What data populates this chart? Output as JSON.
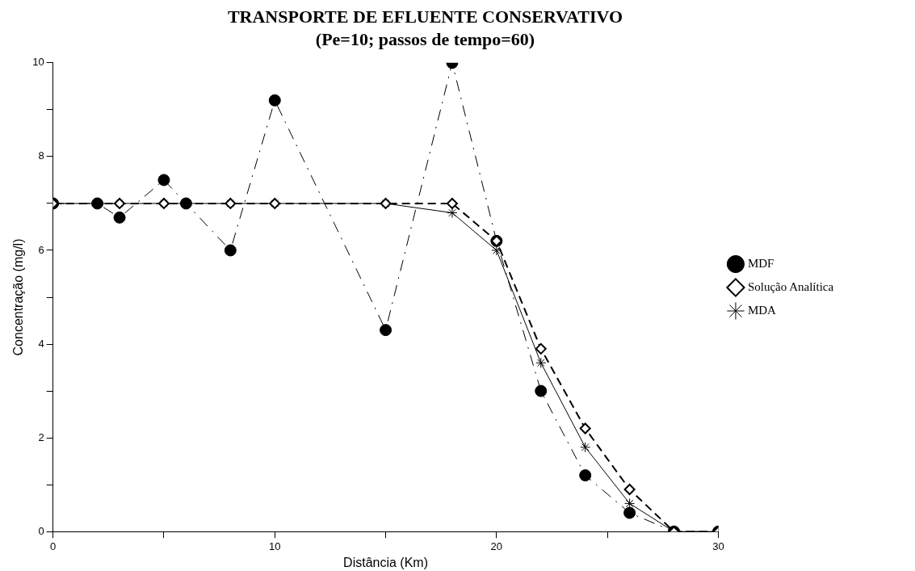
{
  "chart_data": {
    "type": "line",
    "title": "TRANSPORTE DE EFLUENTE CONSERVATIVO",
    "subtitle": "(Pe=10; passos de tempo=60)",
    "xlabel": "Distância (Km)",
    "ylabel": "Concentração (mg/l)",
    "xlim": [
      0,
      30
    ],
    "xticks": [
      0,
      {
        "value": 5,
        "label": null
      },
      10,
      {
        "value": 15,
        "label": null
      },
      20,
      {
        "value": 25,
        "label": null
      },
      30
    ],
    "ylim": [
      0,
      10
    ],
    "yticks": [
      0,
      {
        "value": 1,
        "label": null
      },
      2,
      {
        "value": 3,
        "label": null
      },
      4,
      {
        "value": 5,
        "label": null
      },
      6,
      {
        "value": 7,
        "label": null
      },
      8,
      {
        "value": 9,
        "label": null
      },
      10
    ],
    "grid": false,
    "legend": "right",
    "series": [
      {
        "name": "MDF",
        "color": "#000000",
        "marker": "circle",
        "line_style": "dashed",
        "x": [
          0,
          2,
          3,
          5,
          6,
          8,
          10,
          15,
          18,
          20,
          22,
          24,
          26,
          28,
          30
        ],
        "values": [
          7,
          7,
          6.7,
          7.5,
          7,
          6,
          9.2,
          4.3,
          10,
          6.2,
          3,
          1.2,
          0.4,
          0,
          0
        ]
      },
      {
        "name": "Solução Analítica",
        "color": "#000000",
        "marker": "diamond",
        "line_style": "dashed",
        "x": [
          0,
          3,
          5,
          8,
          10,
          15,
          18,
          20,
          22,
          24,
          26,
          28,
          30
        ],
        "values": [
          7,
          7,
          7,
          7,
          7,
          7,
          7,
          6.2,
          3.9,
          2.2,
          0.9,
          0,
          0
        ]
      },
      {
        "name": "MDA",
        "color": "#000000",
        "marker": "cross",
        "line_style": "solid",
        "x": [
          0,
          3,
          5,
          8,
          10,
          15,
          18,
          20,
          22,
          24,
          26,
          28,
          30
        ],
        "values": [
          7,
          7,
          7,
          7,
          7,
          7,
          6.8,
          6,
          3.6,
          1.8,
          0.6,
          0,
          0
        ]
      }
    ]
  }
}
